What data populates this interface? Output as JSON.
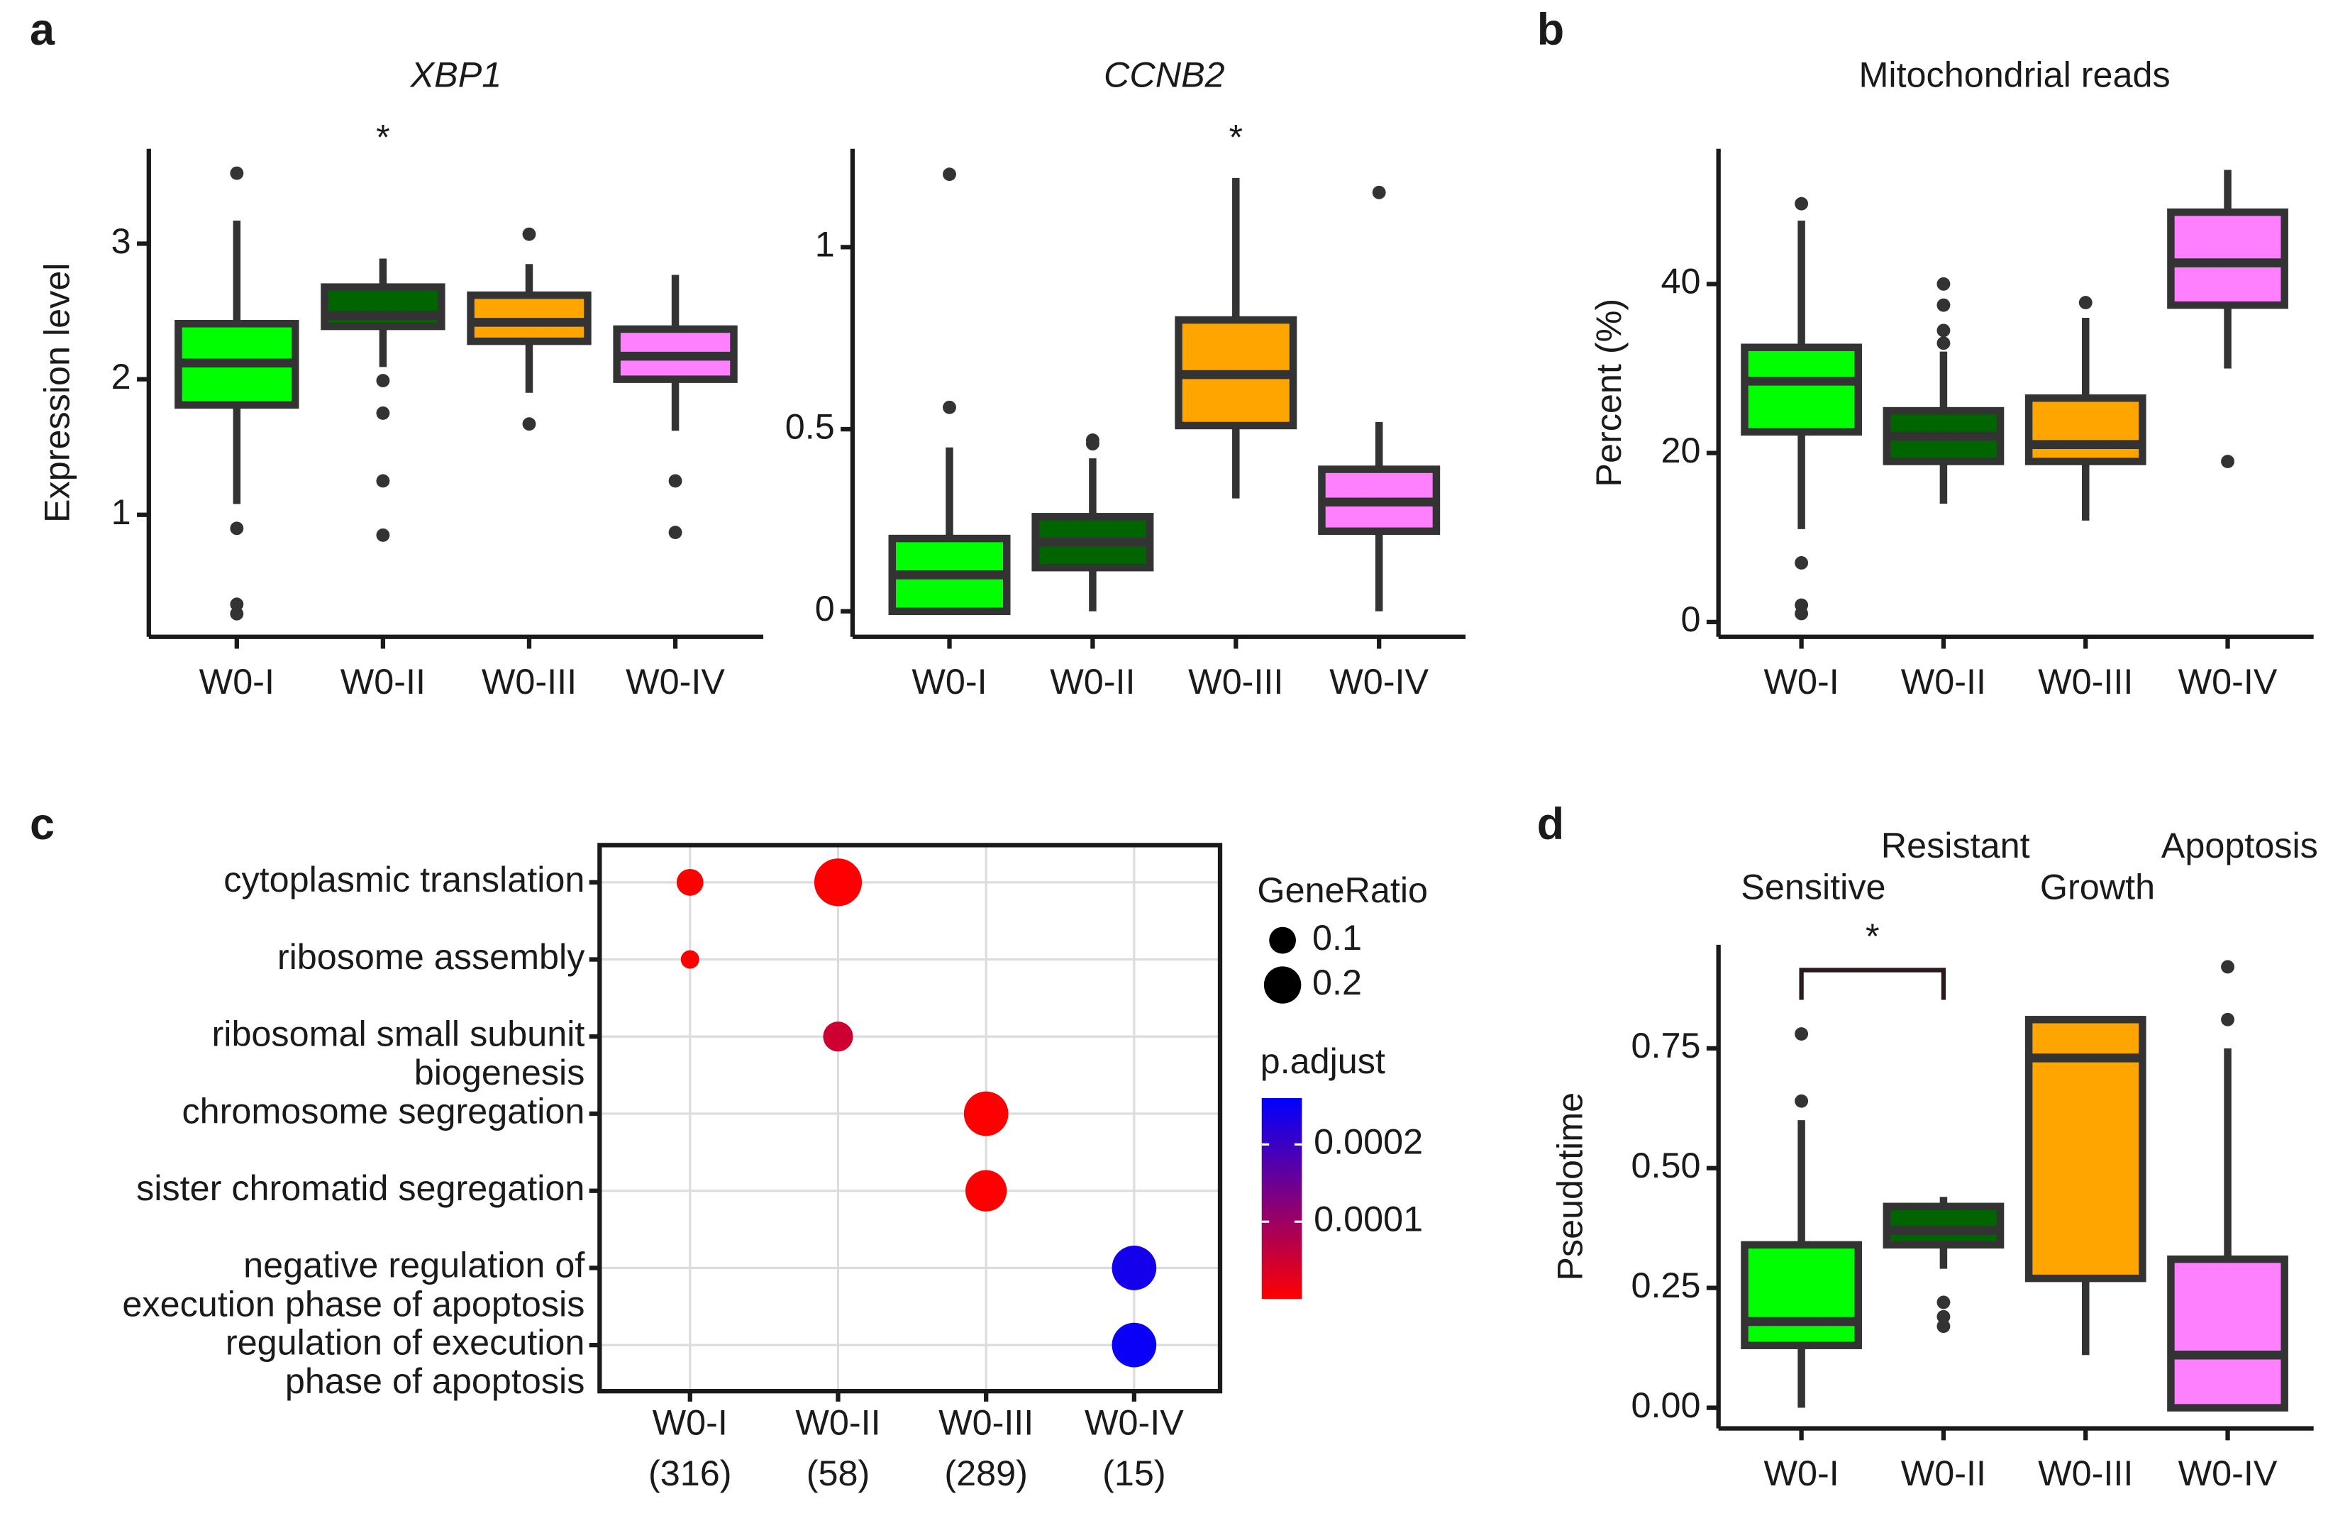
{
  "panel_labels": [
    "a",
    "b",
    "c",
    "d"
  ],
  "chart_data": [
    {
      "type": "box",
      "title": "XBP1",
      "title_style": "italic",
      "ylabel": "Expression level",
      "categories": [
        "W0-I",
        "W0-II",
        "W0-III",
        "W0-IV"
      ],
      "colors": [
        "#00ff00",
        "#006400",
        "#ffa500",
        "#ff80ff"
      ],
      "ylim": [
        0.1,
        3.7
      ],
      "yticks": [
        1,
        2,
        3
      ],
      "stats": [
        {
          "low": 1.08,
          "q1": 1.81,
          "median": 2.12,
          "q3": 2.41,
          "high": 3.17,
          "outliers": [
            3.52,
            0.9,
            0.34,
            0.27
          ]
        },
        {
          "low": 2.09,
          "q1": 2.39,
          "median": 2.47,
          "q3": 2.68,
          "high": 2.89,
          "outliers": [
            1.99,
            1.75,
            1.25,
            0.85
          ]
        },
        {
          "low": 1.9,
          "q1": 2.28,
          "median": 2.42,
          "q3": 2.62,
          "high": 2.85,
          "outliers": [
            3.07,
            1.67
          ]
        },
        {
          "low": 1.62,
          "q1": 2.0,
          "median": 2.17,
          "q3": 2.37,
          "high": 2.77,
          "outliers": [
            1.25,
            0.87
          ]
        }
      ],
      "significance": [
        {
          "text": "*",
          "categories": [
            "W0-II"
          ]
        }
      ]
    },
    {
      "type": "box",
      "title": "CCNB2",
      "title_style": "italic",
      "categories": [
        "W0-I",
        "W0-II",
        "W0-III",
        "W0-IV"
      ],
      "colors": [
        "#00ff00",
        "#006400",
        "#ffa500",
        "#ff80ff"
      ],
      "ylim": [
        -0.07,
        1.27
      ],
      "yticks": [
        0,
        0.5,
        1
      ],
      "stats": [
        {
          "low": 0,
          "q1": 0,
          "median": 0.1,
          "q3": 0.2,
          "high": 0.45,
          "outliers": [
            0.56,
            1.2
          ]
        },
        {
          "low": 0,
          "q1": 0.12,
          "median": 0.19,
          "q3": 0.26,
          "high": 0.42,
          "outliers": [
            0.46,
            0.47
          ]
        },
        {
          "low": 0.31,
          "q1": 0.51,
          "median": 0.65,
          "q3": 0.8,
          "high": 1.19,
          "outliers": []
        },
        {
          "low": 0,
          "q1": 0.22,
          "median": 0.3,
          "q3": 0.39,
          "high": 0.52,
          "outliers": [
            1.15
          ]
        }
      ],
      "significance": [
        {
          "text": "*",
          "categories": [
            "W0-III"
          ]
        }
      ]
    },
    {
      "type": "box",
      "title": "Mitochondrial reads",
      "ylabel": "Percent (%)",
      "categories": [
        "W0-I",
        "W0-II",
        "W0-III",
        "W0-IV"
      ],
      "colors": [
        "#00ff00",
        "#006400",
        "#ffa500",
        "#ff80ff"
      ],
      "ylim": [
        -1.75,
        56
      ],
      "yticks": [
        0,
        20,
        40
      ],
      "stats": [
        {
          "low": 11,
          "q1": 22.5,
          "median": 28.5,
          "q3": 32.5,
          "high": 47.5,
          "outliers": [
            49.5,
            7,
            2,
            1
          ]
        },
        {
          "low": 14,
          "q1": 19,
          "median": 22,
          "q3": 25,
          "high": 32,
          "outliers": [
            33,
            34.5,
            37.5,
            40
          ]
        },
        {
          "low": 12,
          "q1": 19,
          "median": 21,
          "q3": 26.5,
          "high": 36,
          "outliers": [
            37.8
          ]
        },
        {
          "low": 30,
          "q1": 37.5,
          "median": 42.5,
          "q3": 48.5,
          "high": 53.5,
          "outliers": [
            19
          ]
        }
      ]
    },
    {
      "type": "dot",
      "categories": [
        "W0-I",
        "W0-II",
        "W0-III",
        "W0-IV"
      ],
      "category_counts": [
        {
          "value": 316,
          "label": "(316)"
        },
        {
          "value": 58,
          "label": "(58)"
        },
        {
          "value": 289,
          "label": "(289)"
        },
        {
          "value": 15,
          "label": "(15)"
        }
      ],
      "terms": [
        {
          "label": [
            "cytoplasmic translation"
          ],
          "points": [
            {
              "category": "W0-I",
              "gene_ratio": 0.1,
              "p_adjust": 1e-06
            },
            {
              "category": "W0-II",
              "gene_ratio": 0.3,
              "p_adjust": 1e-06
            }
          ]
        },
        {
          "label": [
            "ribosome assembly"
          ],
          "points": [
            {
              "category": "W0-I",
              "gene_ratio": 0.02,
              "p_adjust": 1e-06
            }
          ]
        },
        {
          "label": [
            "ribosomal small subunit",
            "biogenesis"
          ],
          "points": [
            {
              "category": "W0-II",
              "gene_ratio": 0.13,
              "p_adjust": 5e-05
            }
          ]
        },
        {
          "label": [
            "chromosome segregation"
          ],
          "points": [
            {
              "category": "W0-III",
              "gene_ratio": 0.27,
              "p_adjust": 1e-06
            }
          ]
        },
        {
          "label": [
            "sister chromatid segregation"
          ],
          "points": [
            {
              "category": "W0-III",
              "gene_ratio": 0.24,
              "p_adjust": 1e-06
            }
          ]
        },
        {
          "label": [
            "negative regulation of",
            "execution phase of apoptosis"
          ],
          "points": [
            {
              "category": "W0-IV",
              "gene_ratio": 0.27,
              "p_adjust": 0.00024
            }
          ]
        },
        {
          "label": [
            "regulation of execution",
            "phase of apoptosis"
          ],
          "points": [
            {
              "category": "W0-IV",
              "gene_ratio": 0.27,
              "p_adjust": 0.00025
            }
          ]
        }
      ],
      "size_title": "GeneRatio",
      "size_legend": [
        0.1,
        0.2
      ],
      "color_title": "p.adjust",
      "colorbar_lim": [
        0,
        0.00026
      ],
      "colorbar_ticks": [
        0.0001,
        0.0002
      ],
      "color_low": "#ff0000",
      "color_high": "#0000ff",
      "grid": true
    },
    {
      "type": "box",
      "ylabel": "Pseudotime",
      "categories": [
        "W0-I",
        "W0-II",
        "W0-III",
        "W0-IV"
      ],
      "colors": [
        "#00ff00",
        "#006400",
        "#ffa500",
        "#ff80ff"
      ],
      "group_labels": [
        "Sensitive",
        "Resistant",
        "Growth",
        "Apoptosis"
      ],
      "ylim": [
        -0.043,
        0.966
      ],
      "yticks": [
        {
          "value": 0,
          "label": "0.00"
        },
        {
          "value": 0.25,
          "label": "0.25"
        },
        {
          "value": 0.5,
          "label": "0.50"
        },
        {
          "value": 0.75,
          "label": "0.75"
        }
      ],
      "stats": [
        {
          "low": 0,
          "q1": 0.13,
          "median": 0.18,
          "q3": 0.34,
          "high": 0.6,
          "outliers": [
            0.64,
            0.78
          ]
        },
        {
          "low": 0.29,
          "q1": 0.34,
          "median": 0.37,
          "q3": 0.42,
          "high": 0.44,
          "outliers": [
            0.22,
            0.19,
            0.17
          ]
        },
        {
          "low": 0.11,
          "q1": 0.27,
          "median": 0.73,
          "q3": 0.81,
          "high": 0.81,
          "outliers": []
        },
        {
          "low": 0,
          "q1": 0,
          "median": 0.11,
          "q3": 0.31,
          "high": 0.75,
          "outliers": [
            0.81,
            0.92
          ]
        }
      ],
      "significance": [
        {
          "text": "*",
          "categories": [
            "W0-I",
            "W0-II"
          ]
        }
      ]
    }
  ]
}
